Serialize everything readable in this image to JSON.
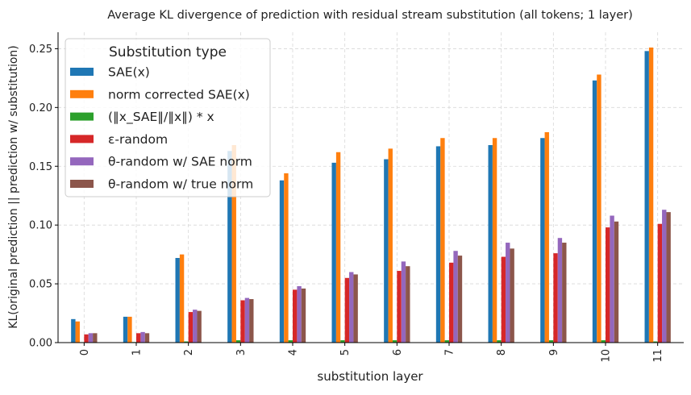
{
  "chart_data": {
    "type": "bar",
    "title": "Average KL divergence of prediction with residual stream substitution (all tokens; 1 layer)",
    "xlabel": "substitution layer",
    "ylabel": "KL(original prediction || prediction w/ substitution)",
    "categories": [
      "0",
      "1",
      "2",
      "3",
      "4",
      "5",
      "6",
      "7",
      "8",
      "9",
      "10",
      "11"
    ],
    "ylim": [
      0,
      0.264
    ],
    "yticks": [
      "0.00",
      "0.05",
      "0.10",
      "0.15",
      "0.20",
      "0.25"
    ],
    "grid": true,
    "legend": {
      "title": "Substitution type",
      "placement": "upper-left"
    },
    "series": [
      {
        "name": "SAE(x)",
        "color": "#1f77b4",
        "values": [
          0.02,
          0.022,
          0.072,
          0.163,
          0.138,
          0.153,
          0.156,
          0.167,
          0.168,
          0.174,
          0.223,
          0.248
        ]
      },
      {
        "name": "norm corrected SAE(x)",
        "color": "#ff7f0e",
        "values": [
          0.018,
          0.022,
          0.075,
          0.168,
          0.144,
          0.162,
          0.165,
          0.174,
          0.174,
          0.179,
          0.228,
          0.251
        ]
      },
      {
        "name": "(‖x_SAE‖/‖x‖) * x",
        "color": "#2ca02c",
        "values": [
          0.0004,
          0.0005,
          0.001,
          0.002,
          0.002,
          0.002,
          0.002,
          0.002,
          0.002,
          0.002,
          0.002,
          0.001
        ]
      },
      {
        "name": "ε-random",
        "color": "#d62728",
        "values": [
          0.007,
          0.008,
          0.026,
          0.036,
          0.045,
          0.055,
          0.061,
          0.068,
          0.073,
          0.076,
          0.098,
          0.101
        ]
      },
      {
        "name": "θ-random w/ SAE norm",
        "color": "#9467bd",
        "values": [
          0.008,
          0.009,
          0.028,
          0.038,
          0.048,
          0.06,
          0.069,
          0.078,
          0.085,
          0.089,
          0.108,
          0.113
        ]
      },
      {
        "name": "θ-random w/ true norm",
        "color": "#8c564b",
        "values": [
          0.008,
          0.008,
          0.027,
          0.037,
          0.046,
          0.058,
          0.065,
          0.074,
          0.08,
          0.085,
          0.103,
          0.111
        ]
      }
    ]
  }
}
